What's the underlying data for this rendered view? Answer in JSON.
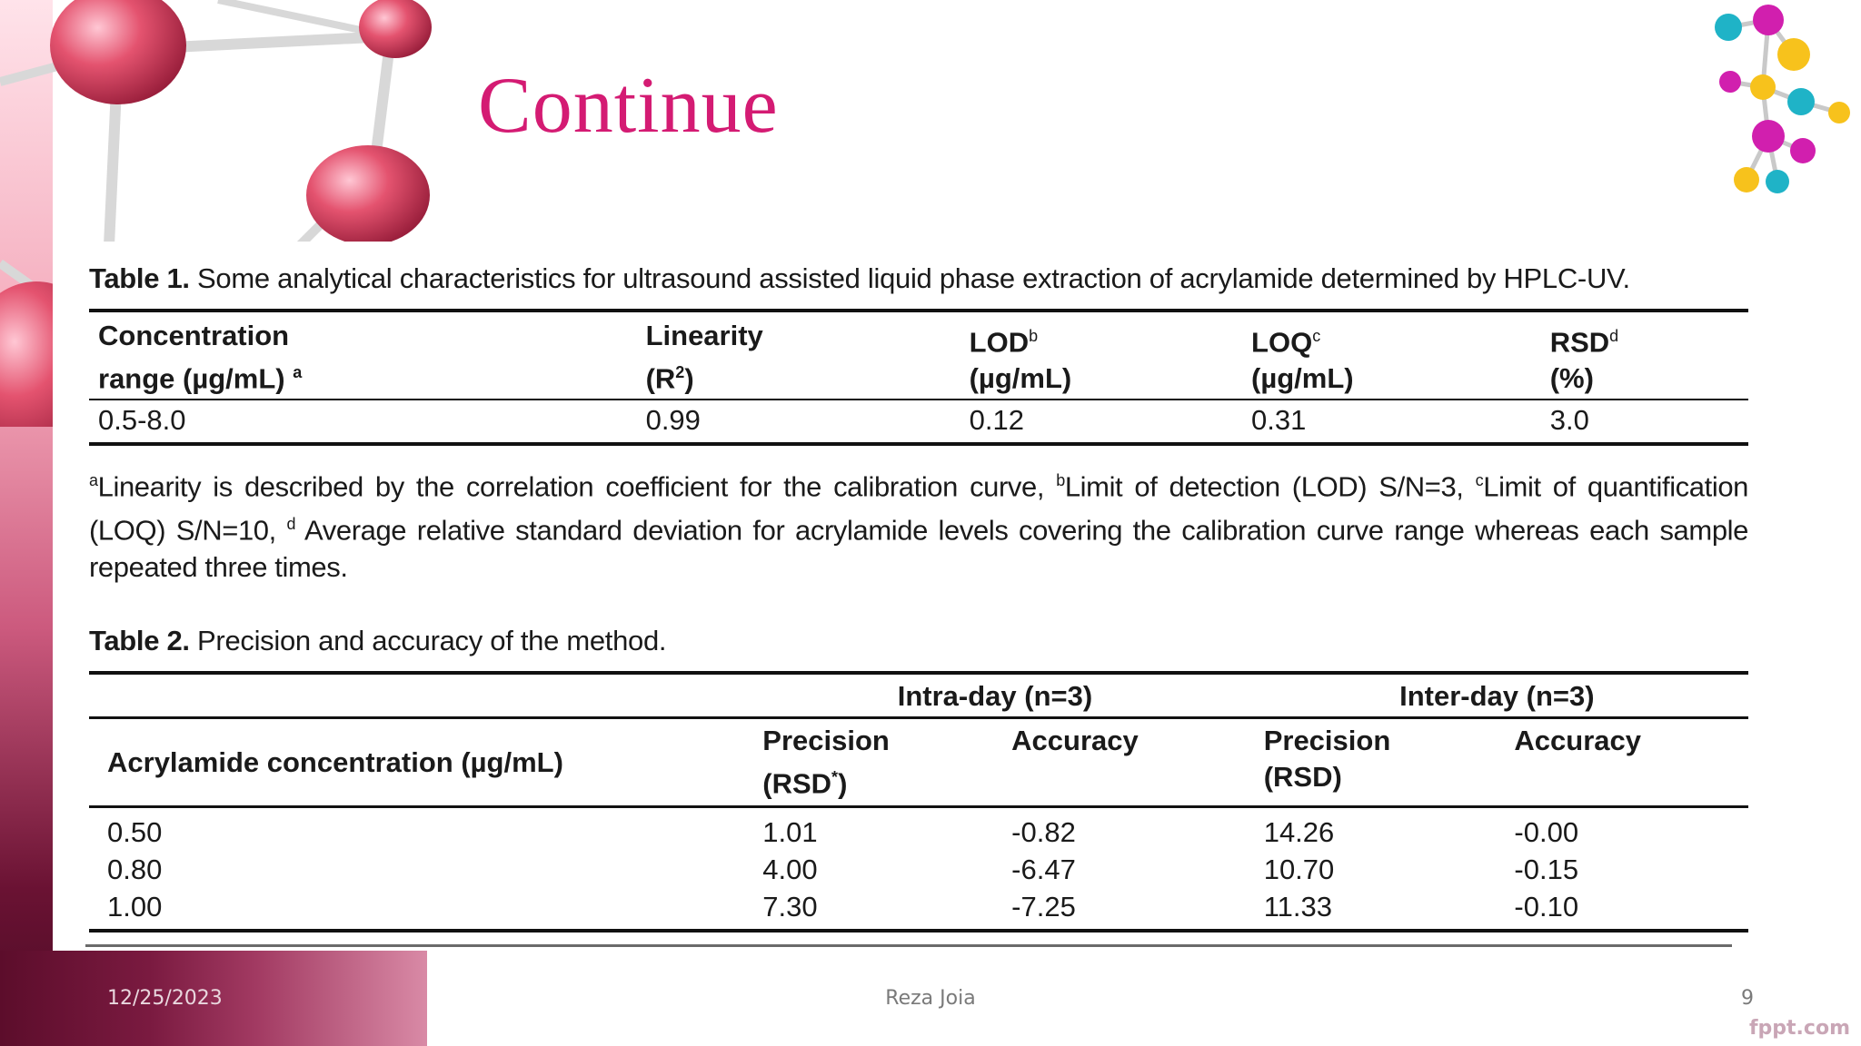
{
  "slide": {
    "title": "Continue",
    "footer": {
      "date": "12/25/2023",
      "author": "Reza Joia",
      "page": "9"
    },
    "watermark": "fppt.com"
  },
  "table1": {
    "caption_label": "Table 1.",
    "caption_text": " Some analytical characteristics for ultrasound assisted liquid phase extraction of acrylamide determined by HPLC-UV.",
    "headers": {
      "col1_line1": "Concentration",
      "col1_line2": " range (µg/mL) ",
      "col1_sup": "a",
      "col2_line1": "Linearity",
      "col2_line2_pre": "(R",
      "col2_sup": "2",
      "col2_line2_post": ")",
      "col3_line1": "LOD",
      "col3_sup": "b",
      "col3_line2": "(µg/mL)",
      "col4_line1": "LOQ",
      "col4_sup": "c",
      "col4_line2": " (µg/mL)",
      "col5_line1": "RSD",
      "col5_sup": "d",
      "col5_line2": "(%)"
    },
    "row": {
      "range": "0.5-8.0",
      "linearity": "0.99",
      "lod": "0.12",
      "loq": "0.31",
      "rsd": "3.0"
    },
    "footnote": {
      "sup_a": "a",
      "text_a": "Linearity is described by the correlation coefficient for the calibration curve, ",
      "sup_b": "b",
      "text_b": "Limit of detection (LOD) S/N=3, ",
      "sup_c": "c",
      "text_c": "Limit of quantification (LOQ) S/N=10, ",
      "sup_d": "d",
      "text_d": " Average relative standard deviation for acrylamide levels covering the calibration curve range whereas each sample repeated three times."
    }
  },
  "table2": {
    "caption_label": "Table 2.",
    "caption_text": " Precision and accuracy of the method.",
    "group_intra": "Intra-day (n=3)",
    "group_inter": "Inter-day (n=3)",
    "concentration_header": "Acrylamide concentration (µg/mL)",
    "intra_precision_line1": "Precision",
    "intra_precision_line2_pre": "(RSD",
    "intra_precision_sup": "*",
    "intra_precision_line2_post": ")",
    "intra_accuracy": "Accuracy",
    "inter_precision_line1": "Precision",
    "inter_precision_line2": "(RSD)",
    "inter_accuracy": "Accuracy",
    "rows": [
      {
        "conc": "0.50",
        "intra_precision": "1.01",
        "intra_accuracy": "-0.82",
        "inter_precision": "14.26",
        "inter_accuracy": "-0.00"
      },
      {
        "conc": "0.80",
        "intra_precision": "4.00",
        "intra_accuracy": "-6.47",
        "inter_precision": "10.70",
        "inter_accuracy": "-0.15"
      },
      {
        "conc": "1.00",
        "intra_precision": "7.30",
        "intra_accuracy": "-7.25",
        "inter_precision": "11.33",
        "inter_accuracy": "-0.10"
      }
    ]
  }
}
